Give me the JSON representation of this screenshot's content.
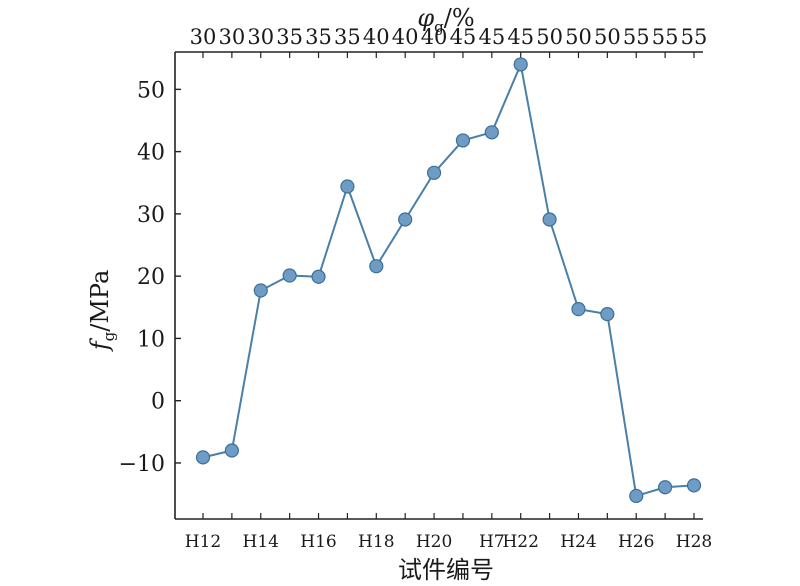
{
  "chart_data": {
    "type": "line",
    "title": "",
    "xlabel": "试件编号",
    "ylabel_main": "f",
    "ylabel_sub": "g",
    "ylabel_unit": "/MPa",
    "top_xlabel_main": "φ",
    "top_xlabel_sub": "g",
    "top_xlabel_unit": "/%",
    "ylim": [
      -19,
      56
    ],
    "yticks": [
      -10,
      0,
      10,
      20,
      30,
      40,
      50
    ],
    "bottom_tick_labels": [
      "H12",
      "H14",
      "H16",
      "H18",
      "H20",
      "H7",
      "H22",
      "H24",
      "H26",
      "H28"
    ],
    "bottom_tick_indices": [
      0,
      2,
      4,
      6,
      8,
      10,
      11,
      13,
      15,
      17
    ],
    "top_tick_labels": [
      "30",
      "30",
      "30",
      "35",
      "35",
      "35",
      "40",
      "40",
      "40",
      "45",
      "45",
      "45",
      "50",
      "50",
      "50",
      "55",
      "55",
      "55"
    ],
    "grid": false,
    "series": [
      {
        "color": "#4a7fa8",
        "marker_color": "#6f9cc4",
        "values": [
          -9.1,
          -8.0,
          17.7,
          20.1,
          19.9,
          34.4,
          21.6,
          29.1,
          36.6,
          41.8,
          43.1,
          54.0,
          29.1,
          14.7,
          13.9,
          -15.3,
          -13.9,
          -13.6
        ]
      }
    ]
  }
}
